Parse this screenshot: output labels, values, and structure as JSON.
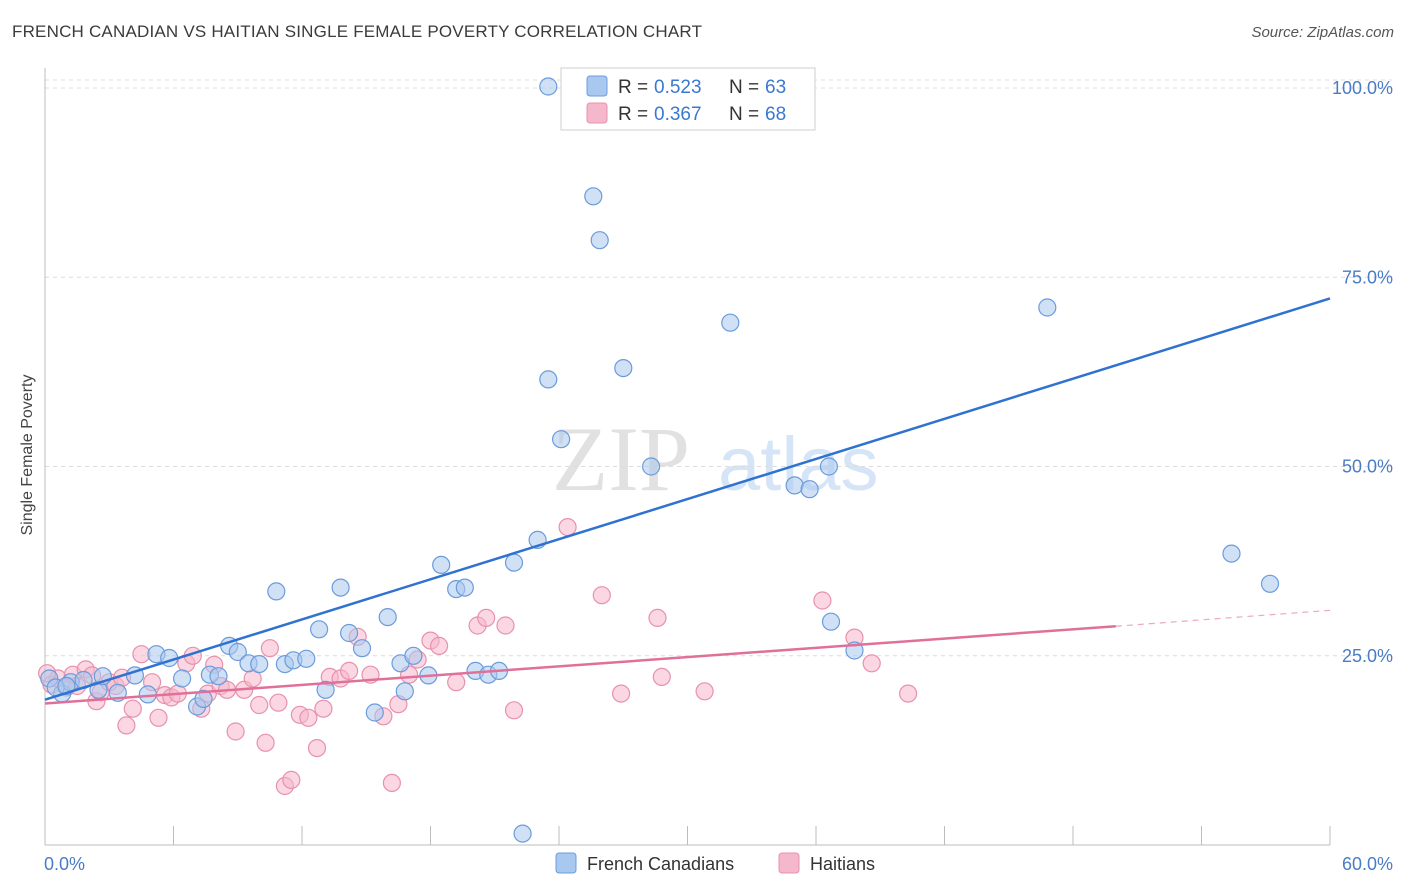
{
  "title": "FRENCH CANADIAN VS HAITIAN SINGLE FEMALE POVERTY CORRELATION CHART",
  "source": "Source: ZipAtlas.com",
  "watermark": {
    "part1": "ZIP",
    "part2": "atlas"
  },
  "colors": {
    "blue_fill": "#a9c8ef",
    "blue_stroke": "#6b9bdc",
    "blue_line": "#2f72d0",
    "pink_fill": "#f5b7cb",
    "pink_stroke": "#e891ad",
    "pink_line": "#e0709a",
    "axis_text": "#4a7cc4",
    "grid": "#dcdcdc"
  },
  "legend": {
    "rows": [
      {
        "r_label": "R = ",
        "r_value": "0.523",
        "n_label": "N = ",
        "n_value": "63"
      },
      {
        "r_label": "R = ",
        "r_value": "0.367",
        "n_label": "N = ",
        "n_value": "68"
      }
    ]
  },
  "chart_data": {
    "type": "scatter",
    "title": "FRENCH CANADIAN VS HAITIAN SINGLE FEMALE POVERTY CORRELATION CHART",
    "xlabel": "",
    "ylabel": "Single Female Poverty",
    "xlim": [
      0,
      60
    ],
    "ylim": [
      0,
      100
    ],
    "x_tick_labels": [
      "0.0%",
      "60.0%"
    ],
    "y_ticks": [
      25,
      50,
      75,
      100
    ],
    "y_tick_labels": [
      "25.0%",
      "50.0%",
      "75.0%",
      "100.0%"
    ],
    "grid": true,
    "legend_placement": "top-center and bottom",
    "series": [
      {
        "name": "French Canadians",
        "r": 0.523,
        "n": 63,
        "trend": {
          "x": [
            0,
            60
          ],
          "y": [
            19.2,
            72.2
          ],
          "dashed_after": null
        },
        "points": [
          [
            0.2,
            22.0
          ],
          [
            0.8,
            20.0
          ],
          [
            1.2,
            21.5
          ],
          [
            1.8,
            21.8
          ],
          [
            2.5,
            20.5
          ],
          [
            2.7,
            22.3
          ],
          [
            3.4,
            20.1
          ],
          [
            4.2,
            22.4
          ],
          [
            4.8,
            19.9
          ],
          [
            5.2,
            25.2
          ],
          [
            5.8,
            24.7
          ],
          [
            6.4,
            22.0
          ],
          [
            7.1,
            18.3
          ],
          [
            7.4,
            19.3
          ],
          [
            7.7,
            22.5
          ],
          [
            8.1,
            22.3
          ],
          [
            8.6,
            26.3
          ],
          [
            9.0,
            25.5
          ],
          [
            9.5,
            24.0
          ],
          [
            10.0,
            23.9
          ],
          [
            10.8,
            33.5
          ],
          [
            11.2,
            23.9
          ],
          [
            11.6,
            24.4
          ],
          [
            12.2,
            24.6
          ],
          [
            12.8,
            28.5
          ],
          [
            13.1,
            20.5
          ],
          [
            13.8,
            34.0
          ],
          [
            14.2,
            28.0
          ],
          [
            14.8,
            26.0
          ],
          [
            15.4,
            17.5
          ],
          [
            16.0,
            30.1
          ],
          [
            16.6,
            24.0
          ],
          [
            16.8,
            20.3
          ],
          [
            17.2,
            25.0
          ],
          [
            17.9,
            22.4
          ],
          [
            18.5,
            37.0
          ],
          [
            19.2,
            33.8
          ],
          [
            19.6,
            34.0
          ],
          [
            20.1,
            23.0
          ],
          [
            20.7,
            22.5
          ],
          [
            21.2,
            23.0
          ],
          [
            21.9,
            37.3
          ],
          [
            22.3,
            1.5
          ],
          [
            23.0,
            40.3
          ],
          [
            23.5,
            61.5
          ],
          [
            23.5,
            100.2
          ],
          [
            24.1,
            53.6
          ],
          [
            25.6,
            85.7
          ],
          [
            25.9,
            79.9
          ],
          [
            27.0,
            63.0
          ],
          [
            28.3,
            50.0
          ],
          [
            32.0,
            69.0
          ],
          [
            32.7,
            100.1
          ],
          [
            35.0,
            47.5
          ],
          [
            35.7,
            47.0
          ],
          [
            36.6,
            50.0
          ],
          [
            36.7,
            29.5
          ],
          [
            37.8,
            25.7
          ],
          [
            46.8,
            71.0
          ],
          [
            55.4,
            38.5
          ],
          [
            57.2,
            34.5
          ],
          [
            0.5,
            20.8
          ],
          [
            1.0,
            21.0
          ]
        ]
      },
      {
        "name": "Haitians",
        "r": 0.367,
        "n": 68,
        "trend": {
          "x": [
            0,
            50
          ],
          "y": [
            18.7,
            28.9
          ],
          "dashed_to": [
            60,
            31.0
          ]
        },
        "points": [
          [
            0.3,
            21.2
          ],
          [
            0.6,
            22.0
          ],
          [
            1.0,
            20.8
          ],
          [
            1.3,
            22.5
          ],
          [
            1.5,
            21.0
          ],
          [
            1.9,
            23.2
          ],
          [
            2.2,
            22.4
          ],
          [
            2.4,
            19.0
          ],
          [
            2.6,
            20.2
          ],
          [
            3.0,
            21.5
          ],
          [
            3.3,
            21.0
          ],
          [
            3.6,
            22.1
          ],
          [
            3.8,
            15.8
          ],
          [
            4.1,
            18.0
          ],
          [
            4.5,
            25.2
          ],
          [
            5.0,
            21.5
          ],
          [
            5.3,
            16.8
          ],
          [
            5.6,
            19.8
          ],
          [
            5.9,
            19.5
          ],
          [
            6.2,
            20.0
          ],
          [
            6.6,
            24.0
          ],
          [
            6.9,
            25.0
          ],
          [
            7.3,
            18.0
          ],
          [
            7.6,
            20.0
          ],
          [
            7.9,
            23.8
          ],
          [
            8.2,
            21.0
          ],
          [
            8.5,
            20.5
          ],
          [
            8.9,
            15.0
          ],
          [
            9.3,
            20.5
          ],
          [
            9.7,
            22.0
          ],
          [
            10.0,
            18.5
          ],
          [
            10.3,
            13.5
          ],
          [
            10.5,
            26.0
          ],
          [
            10.9,
            18.8
          ],
          [
            11.2,
            7.8
          ],
          [
            11.5,
            8.6
          ],
          [
            11.9,
            17.2
          ],
          [
            12.3,
            16.8
          ],
          [
            12.7,
            12.8
          ],
          [
            13.0,
            18.0
          ],
          [
            13.3,
            22.2
          ],
          [
            13.8,
            22.0
          ],
          [
            14.2,
            23.0
          ],
          [
            14.6,
            27.5
          ],
          [
            15.2,
            22.5
          ],
          [
            15.8,
            17.0
          ],
          [
            16.2,
            8.2
          ],
          [
            16.5,
            18.6
          ],
          [
            17.0,
            22.5
          ],
          [
            17.4,
            24.5
          ],
          [
            18.0,
            27.0
          ],
          [
            18.4,
            26.3
          ],
          [
            19.2,
            21.5
          ],
          [
            20.2,
            29.0
          ],
          [
            20.6,
            30.0
          ],
          [
            21.5,
            29.0
          ],
          [
            21.9,
            17.8
          ],
          [
            24.4,
            42.0
          ],
          [
            26.0,
            33.0
          ],
          [
            26.9,
            20.0
          ],
          [
            28.6,
            30.0
          ],
          [
            28.8,
            22.2
          ],
          [
            30.8,
            20.3
          ],
          [
            36.3,
            32.3
          ],
          [
            37.8,
            27.4
          ],
          [
            38.6,
            24.0
          ],
          [
            40.3,
            20.0
          ],
          [
            0.1,
            22.7
          ]
        ]
      }
    ]
  }
}
